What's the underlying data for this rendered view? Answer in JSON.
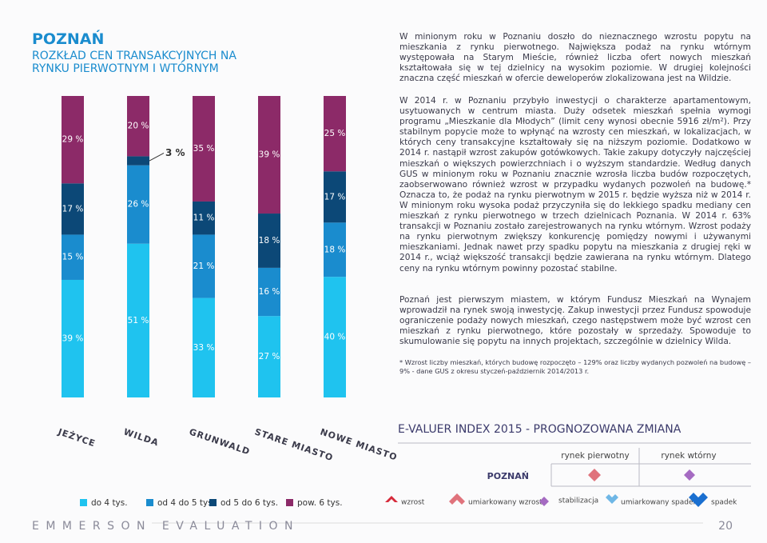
{
  "header": {
    "title": "POZNAŃ",
    "subtitle": "ROZKŁAD CEN TRANSAKCYJNYCH NA RYNKU PIERWOTNYM I WTÓRNYM"
  },
  "chart_data": {
    "type": "stacked-bar",
    "categories": [
      "JEŻYCE",
      "WILDA",
      "GRUNWALD",
      "STARE MIASTO",
      "NOWE MIASTO"
    ],
    "series": [
      {
        "name": "do 4 tys.",
        "color": "#1fc3ef",
        "values": [
          39,
          51,
          33,
          27,
          40
        ],
        "value_labels": [
          "39 %",
          "51 %",
          "33 %",
          "27 %",
          "40 %"
        ]
      },
      {
        "name": "od 4 do 5 tys.",
        "color": "#1a8cce",
        "values": [
          15,
          26,
          21,
          16,
          18
        ],
        "value_labels": [
          "15 %",
          "26 %",
          "21 %",
          "16 %",
          "18 %"
        ]
      },
      {
        "name": "od 5 do 6 tys.",
        "color": "#0c4877",
        "values": [
          17,
          3,
          11,
          18,
          17
        ],
        "value_labels": [
          "17 %",
          "3 %",
          "11 %",
          "18 %",
          "17 %"
        ]
      },
      {
        "name": "pow. 6 tys.",
        "color": "#8c2a68",
        "values": [
          29,
          20,
          35,
          39,
          25
        ],
        "value_labels": [
          "29 %",
          "20 %",
          "35 %",
          "39 %",
          "25 %"
        ]
      }
    ]
  },
  "text": {
    "p1": "W minionym roku w Poznaniu doszło do nieznacznego wzrostu popytu na mieszkania z rynku pierwotnego. Największa podaż na rynku wtórnym występowała na Starym Mieście, również liczba ofert nowych mieszkań kształtowała się w tej dzielnicy na wysokim poziomie. W drugiej kolejności znaczna część mieszkań w ofercie deweloperów zlokalizowana jest na Wildzie.",
    "p2": "W 2014 r. w Poznaniu przybyło inwestycji o charakterze apartamentowym, usytuowanych w centrum miasta. Duży odsetek mieszkań spełnia wymogi programu „Mieszkanie dla Młodych” (limit ceny wynosi obecnie 5916 zł/m²). Przy stabilnym popycie może to wpłynąć na wzrosty cen mieszkań, w lokalizacjach, w których ceny transakcyjne kształtowały się na niższym poziomie. Dodatkowo w 2014 r. nastąpił wzrost zakupów gotówkowych. Takie zakupy dotyczyły najczęściej mieszkań o większych powierzchniach i o wyższym standardzie. Według danych GUS w minionym roku w Poznaniu znacznie wzrosła liczba budów rozpoczętych, zaobserwowano również wzrost w przypadku wydanych pozwoleń na budowę.* Oznacza to, że podaż na rynku pierwotnym w 2015 r. będzie wyższa niż w 2014 r. W minionym roku wysoka podaż przyczyniła się do lekkiego spadku mediany cen mieszkań z rynku pierwotnego w trzech dzielnicach Poznania. W 2014 r. 63% transakcji w Poznaniu zostało zarejestrowanych na rynku wtórnym. Wzrost podaży na rynku pierwotnym zwiększy konkurencję pomiędzy nowymi i używanymi mieszkaniami. Jednak nawet przy spadku popytu na mieszkania z drugiej ręki w 2014 r., wciąż większość transakcji będzie zawierana na rynku wtórnym. Dlatego ceny na rynku wtórnym powinny pozostać stabilne.",
    "p3": "Poznań jest pierwszym miastem, w którym Fundusz Mieszkań na Wynajem wprowadził na rynek swoją inwestycję. Zakup inwestycji przez Fundusz spowoduje ograniczenie podaży nowych mieszkań, czego następstwem może być wzrost cen mieszkań z rynku pierwotnego, które pozostały w sprzedaży. Spowoduje to skumulowanie się popytu na innych projektach, szczególnie w dzielnicy Wilda.",
    "footnote": "* Wzrost liczby mieszkań, których budowę rozpoczęto – 129% oraz liczby wydanych pozwoleń na budowę – 9% - dane GUS z okresu styczeń-październik 2014/2013 r."
  },
  "index": {
    "title": "E-VALUER INDEX 2015 - PROGNOZOWANA ZMIANA",
    "columns": [
      "rynek pierwotny",
      "rynek wtórny"
    ],
    "row": "POZNAŃ",
    "legend": [
      "wzrost",
      "umiarkowany wzrost",
      "stabilizacja",
      "umiarkowany spadek",
      "spadek"
    ]
  },
  "footer": {
    "brand": "EMMERSON EVALUATION",
    "page": "20"
  }
}
